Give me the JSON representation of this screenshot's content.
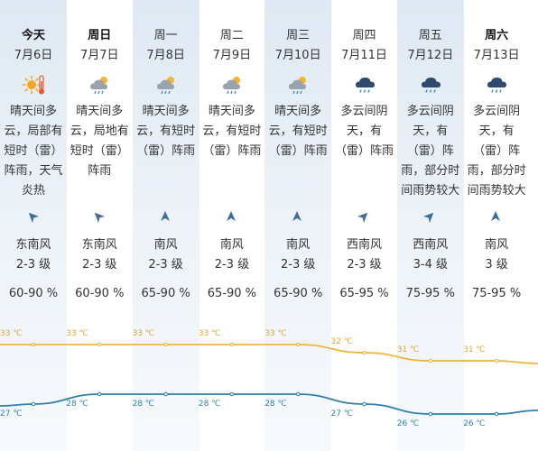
{
  "days": [
    {
      "day": "今天",
      "date": "7月6日",
      "icon": "sun-thermometer-icon",
      "desc": "晴天间多云，局部有短时（雷）阵雨，天气炎热",
      "wind": "东南风",
      "level": "2-3 级",
      "hum": "60-90 %",
      "high": "33 ℃",
      "low": "27 ℃",
      "wind_dir": "southeast",
      "bold": true
    },
    {
      "day": "周日",
      "date": "7月7日",
      "icon": "cloud-sun-rain-icon",
      "desc": "晴天间多云，局地有短时（雷）阵雨",
      "wind": "东南风",
      "level": "2-3 级",
      "hum": "60-90 %",
      "high": "33 ℃",
      "low": "28 ℃",
      "wind_dir": "southeast",
      "bold": true
    },
    {
      "day": "周一",
      "date": "7月8日",
      "icon": "cloud-sun-rain-icon",
      "desc": "晴天间多云，有短时（雷）阵雨",
      "wind": "南风",
      "level": "2-3 级",
      "hum": "65-90 %",
      "high": "33 ℃",
      "low": "28 ℃",
      "wind_dir": "south",
      "bold": false
    },
    {
      "day": "周二",
      "date": "7月9日",
      "icon": "cloud-sun-rain-icon",
      "desc": "晴天间多云，有短时（雷）阵雨",
      "wind": "南风",
      "level": "2-3 级",
      "hum": "65-90 %",
      "high": "33 ℃",
      "low": "28 ℃",
      "wind_dir": "south",
      "bold": false
    },
    {
      "day": "周三",
      "date": "7月10日",
      "icon": "cloud-sun-rain-icon",
      "desc": "晴天间多云，有短时（雷）阵雨",
      "wind": "南风",
      "level": "2-3 级",
      "hum": "65-90 %",
      "high": "33 ℃",
      "low": "28 ℃",
      "wind_dir": "south",
      "bold": false
    },
    {
      "day": "周四",
      "date": "7月11日",
      "icon": "cloud-rain-icon",
      "desc": "多云间阴天，有（雷）阵雨",
      "wind": "西南风",
      "level": "2-3 级",
      "hum": "65-95 %",
      "high": "32 ℃",
      "low": "27 ℃",
      "wind_dir": "southwest",
      "bold": false
    },
    {
      "day": "周五",
      "date": "7月12日",
      "icon": "cloud-rain-icon",
      "desc": "多云间阴天，有（雷）阵雨，部分时间雨势较大",
      "wind": "西南风",
      "level": "3-4 级",
      "hum": "75-95 %",
      "high": "31 ℃",
      "low": "26 ℃",
      "wind_dir": "southwest",
      "bold": false
    },
    {
      "day": "周六",
      "date": "7月13日",
      "icon": "cloud-rain-icon",
      "desc": "多云间阴天，有（雷）阵雨，部分时间雨势较大",
      "wind": "南风",
      "level": "3 级",
      "hum": "75-95 %",
      "high": "31 ℃",
      "low": "26 ℃",
      "wind_dir": "south",
      "bold": true
    }
  ],
  "chart_data": {
    "type": "line",
    "categories": [
      "7月6日",
      "7月7日",
      "7月8日",
      "7月9日",
      "7月10日",
      "7月11日",
      "7月12日",
      "7月13日"
    ],
    "series": [
      {
        "values": [
          33,
          33,
          33,
          33,
          33,
          32,
          31,
          31
        ]
      },
      {
        "values": [
          27,
          28,
          28,
          28,
          28,
          27,
          26,
          26
        ]
      }
    ],
    "colors": {
      "high": "#f0b43c",
      "low": "#2f7fa8"
    }
  }
}
